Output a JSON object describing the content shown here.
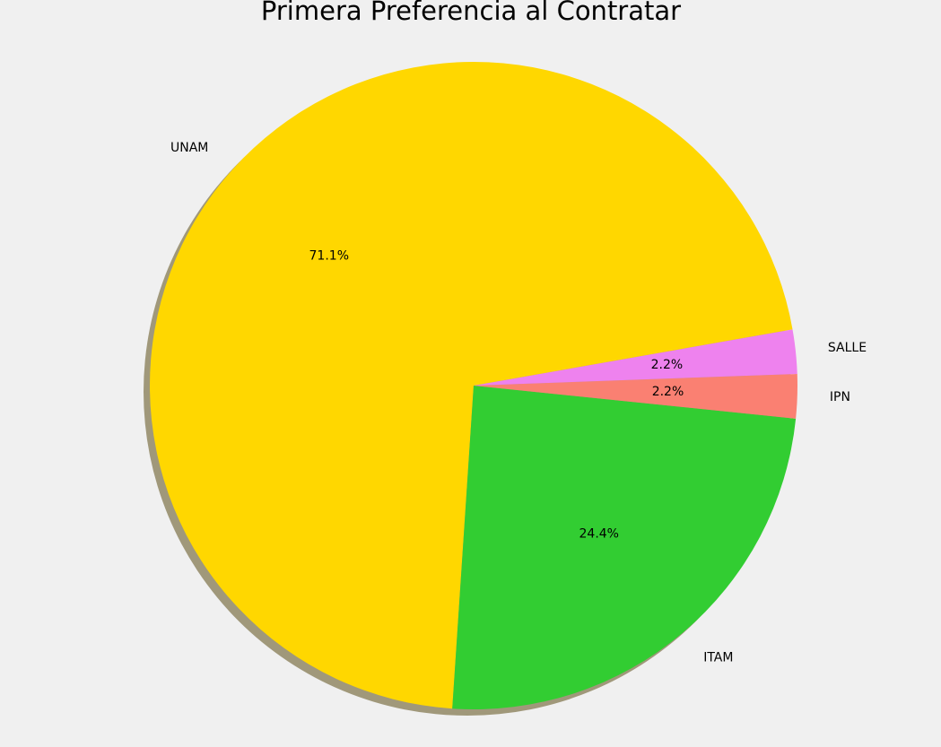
{
  "chart_data": {
    "type": "pie",
    "title": "Primera Preferencia al Contratar",
    "slices": [
      {
        "label": "UNAM",
        "value": 71.1,
        "pct_label": "71.1%",
        "color": "#ffd700"
      },
      {
        "label": "ITAM",
        "value": 24.4,
        "pct_label": "24.4%",
        "color": "#32cd32"
      },
      {
        "label": "IPN",
        "value": 2.2,
        "pct_label": "2.2%",
        "color": "#fa8072"
      },
      {
        "label": "SALLE",
        "value": 2.2,
        "pct_label": "2.2%",
        "color": "#ee82ee"
      }
    ],
    "start_angle_deg": 10,
    "direction": "counterclockwise",
    "shadow": true,
    "shadow_color": "#a0987a",
    "background": "#f0f0f0"
  }
}
